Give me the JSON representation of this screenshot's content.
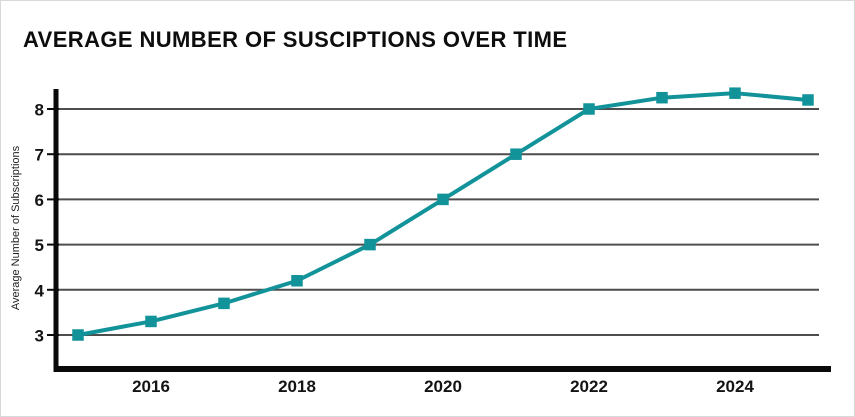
{
  "header": {
    "title": "AVERAGE NUMBER OF SUSCIPTIONS OVER TIME"
  },
  "chart_data": {
    "type": "line",
    "title": "AVERAGE NUMBER OF SUSCIPTIONS OVER TIME",
    "xlabel": "",
    "ylabel": "Average Number of Subscriptions",
    "x": [
      2015,
      2016,
      2017,
      2018,
      2019,
      2020,
      2021,
      2022,
      2023,
      2024,
      2025
    ],
    "series": [
      {
        "name": "Average Number of Subscriptions",
        "values": [
          3.0,
          3.3,
          3.7,
          4.2,
          5.0,
          6.0,
          7.0,
          8.0,
          8.25,
          8.35,
          8.2
        ]
      }
    ],
    "x_ticks": [
      2016,
      2018,
      2020,
      2022,
      2024
    ],
    "x_tick_labels": [
      "2016",
      "2018",
      "2020",
      "2022",
      "2024"
    ],
    "y_ticks": [
      3,
      4,
      5,
      6,
      7,
      8
    ],
    "y_tick_labels": [
      "3",
      "4",
      "5",
      "6",
      "7",
      "8"
    ],
    "ylim": [
      3,
      8.45
    ],
    "xlim": [
      2014.7,
      2025.3
    ],
    "grid": "horizontal-only",
    "legend": "none",
    "marker": "square"
  },
  "colors": {
    "line": "#12939A",
    "marker": "#12939A",
    "gridline": "#4d4d4d",
    "axis": "#0a0a0a",
    "label": "#141414",
    "card_border": "#d9d9d9",
    "background": "#ffffff"
  }
}
